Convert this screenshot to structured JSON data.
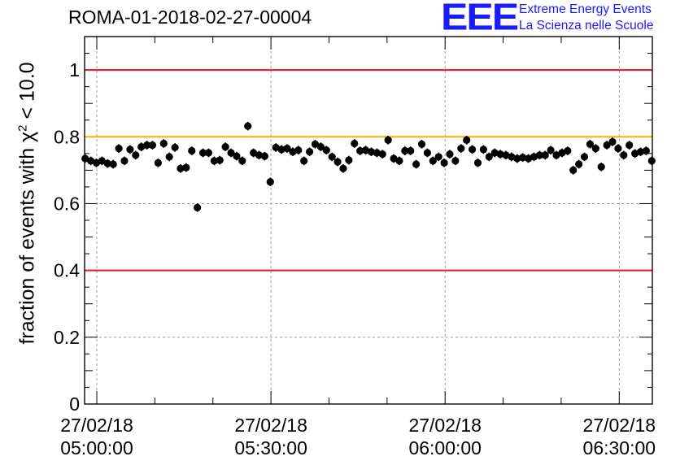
{
  "title": "ROMA-01-2018-02-27-00004",
  "logo": {
    "mark": "EEE",
    "line1": "Extreme Energy Events",
    "line2": "La Scienza nelle Scuole"
  },
  "chart_data": {
    "type": "scatter",
    "ylabel_prefix": "fraction of events with ",
    "ylabel_chi": "χ",
    "ylabel_sup": "2",
    "ylabel_suffix": " < 10.0",
    "ylim": [
      0,
      1.1
    ],
    "yticks": [
      "0",
      "0.2",
      "0.4",
      "0.6",
      "0.8",
      "1"
    ],
    "xlim_minutes": [
      -2.1,
      95.7
    ],
    "xticks": [
      {
        "minutes": 0,
        "date": "27/02/18",
        "time": "05:00:00"
      },
      {
        "minutes": 30,
        "date": "27/02/18",
        "time": "05:30:00"
      },
      {
        "minutes": 60,
        "date": "27/02/18",
        "time": "06:00:00"
      },
      {
        "minutes": 90,
        "date": "27/02/18",
        "time": "06:30:00"
      }
    ],
    "grid": true,
    "reference_lines": [
      {
        "value": 1.0,
        "color": "#e8141b"
      },
      {
        "value": 0.8,
        "color": "#f6b400"
      },
      {
        "value": 0.4,
        "color": "#e8141b"
      }
    ],
    "error": 0.013,
    "marker_color": "#000000",
    "series": [
      {
        "values": [
          0.735,
          0.728,
          0.722,
          0.728,
          0.72,
          0.718,
          0.765,
          0.728,
          0.762,
          0.745,
          0.77,
          0.775,
          0.775,
          0.722,
          0.78,
          0.74,
          0.768,
          0.705,
          0.708,
          0.758,
          0.588,
          0.752,
          0.752,
          0.728,
          0.73,
          0.77,
          0.752,
          0.742,
          0.728,
          0.832,
          0.752,
          0.745,
          0.742,
          0.665,
          0.768,
          0.762,
          0.765,
          0.755,
          0.76,
          0.728,
          0.755,
          0.778,
          0.77,
          0.76,
          0.74,
          0.725,
          0.705,
          0.73,
          0.78,
          0.758,
          0.76,
          0.755,
          0.752,
          0.748,
          0.79,
          0.735,
          0.728,
          0.758,
          0.758,
          0.718,
          0.778,
          0.752,
          0.728,
          0.74,
          0.722,
          0.748,
          0.728,
          0.765,
          0.79,
          0.762,
          0.722,
          0.762,
          0.74,
          0.752,
          0.748,
          0.745,
          0.74,
          0.735,
          0.738,
          0.735,
          0.74,
          0.745,
          0.745,
          0.76,
          0.745,
          0.752,
          0.758,
          0.7,
          0.718,
          0.74,
          0.778,
          0.765,
          0.71,
          0.775,
          0.785,
          0.765,
          0.745,
          0.775,
          0.75,
          0.755,
          0.758,
          0.728
        ]
      }
    ]
  }
}
